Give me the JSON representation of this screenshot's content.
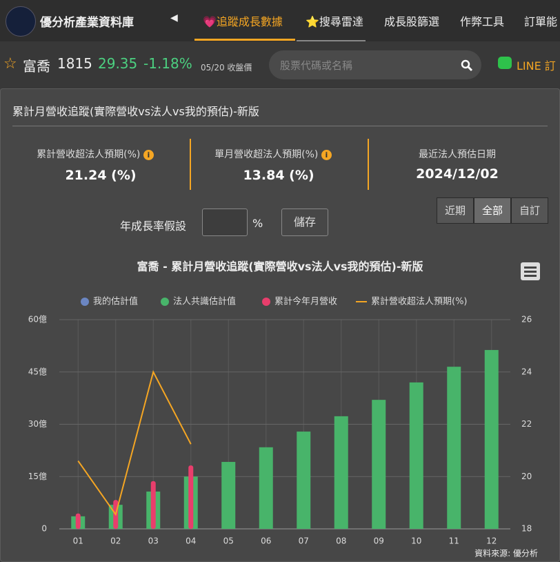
{
  "nav": {
    "brand": "優分析產業資料庫",
    "tabs": [
      "💗追蹤成長數據",
      "⭐搜尋雷達",
      "成長股篩選",
      "作弊工具",
      "訂單能"
    ]
  },
  "stock": {
    "name": "富喬",
    "code": "1815",
    "price": "29.35",
    "change": "-1.18%",
    "date": "05/20 收盤價",
    "search_placeholder": "股票代碼或名稱",
    "line": "LINE 訂"
  },
  "panel": {
    "title": "累計月營收追蹤(實際營收vs法人vs我的預估)-新版",
    "stats": [
      {
        "label": "累計營收超法人預期(%)",
        "value": "21.24 (%)"
      },
      {
        "label": "單月營收超法人預期(%)",
        "value": "13.84 (%)"
      },
      {
        "label": "最近法人預估日期",
        "value": "2024/12/02"
      }
    ],
    "growth_label": "年成長率假設",
    "growth_unit": "%",
    "save": "儲存",
    "ranges": [
      "近期",
      "全部",
      "自訂"
    ]
  },
  "chart_data": {
    "type": "bar",
    "title": "富喬 - 累計月營收追蹤(實際營收vs法人vs我的預估)-新版",
    "source": "資料來源: 優分析",
    "categories": [
      "01",
      "02",
      "03",
      "04",
      "05",
      "06",
      "07",
      "08",
      "09",
      "10",
      "11",
      "12"
    ],
    "series": [
      {
        "name": "我的估計值",
        "color": "#6b86c2",
        "type": "bar",
        "values": [
          null,
          null,
          null,
          null,
          null,
          null,
          null,
          null,
          null,
          null,
          null,
          null
        ]
      },
      {
        "name": "法人共識估計值",
        "color": "#48b46a",
        "type": "bar",
        "values": [
          3.6,
          6.9,
          10.7,
          15.0,
          19.2,
          23.4,
          27.9,
          32.3,
          37.0,
          42.0,
          46.5,
          51.3
        ]
      },
      {
        "name": "累計今年月營收",
        "color": "#e83e6c",
        "type": "bar",
        "values": [
          4.4,
          8.3,
          13.7,
          18.2,
          null,
          null,
          null,
          null,
          null,
          null,
          null,
          null
        ]
      },
      {
        "name": "累計營收超法人預期(%)",
        "color": "#f5a623",
        "type": "line",
        "axis": "y2",
        "values": [
          20.6,
          18.55,
          24.0,
          21.24,
          null,
          null,
          null,
          null,
          null,
          null,
          null,
          null
        ]
      }
    ],
    "ylim": [
      0,
      60
    ],
    "yticks": [
      0,
      {
        "value": 15,
        "label": "15億"
      },
      {
        "value": 30,
        "label": "30億"
      },
      {
        "value": 45,
        "label": "45億"
      },
      {
        "value": 60,
        "label": "60億"
      }
    ],
    "y2lim": [
      18,
      26
    ],
    "y2ticks": [
      18,
      20,
      22,
      24,
      26
    ],
    "grid": true
  }
}
